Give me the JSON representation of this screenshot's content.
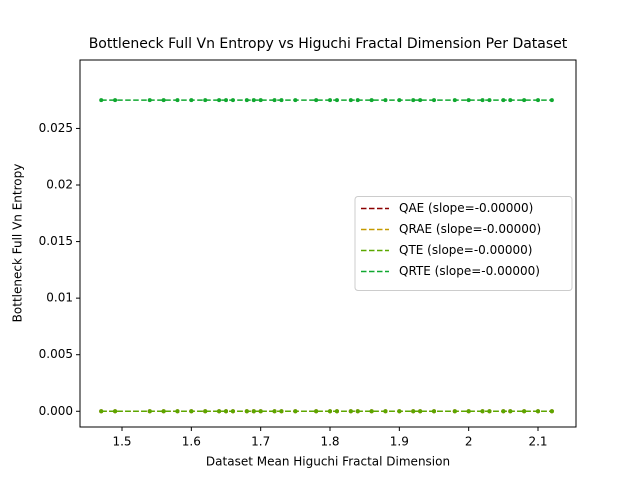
{
  "chart_data": {
    "type": "scatter",
    "title": "Bottleneck Full Vn Entropy vs Higuchi Fractal Dimension Per Dataset",
    "x_label": "Dataset Mean Higuchi Fractal Dimension",
    "y_label": "Bottleneck Full Vn Entropy",
    "x": [
      1.47,
      1.49,
      1.54,
      1.56,
      1.58,
      1.6,
      1.62,
      1.64,
      1.65,
      1.66,
      1.68,
      1.69,
      1.7,
      1.72,
      1.73,
      1.75,
      1.78,
      1.8,
      1.81,
      1.83,
      1.84,
      1.86,
      1.88,
      1.9,
      1.92,
      1.93,
      1.95,
      1.98,
      2.0,
      2.02,
      2.03,
      2.05,
      2.06,
      2.08,
      2.1,
      2.12
    ],
    "fit_x": [
      1.47,
      2.12
    ],
    "series": [
      {
        "name": "QAE (slope=-0.00000)",
        "color": "#8b0000",
        "fit_values": [
          0,
          0
        ],
        "values": [
          0,
          0,
          0,
          0,
          0,
          0,
          0,
          0,
          0,
          0,
          0,
          0,
          0,
          0,
          0,
          0,
          0,
          0,
          0,
          0,
          0,
          0,
          0,
          0,
          0,
          0,
          0,
          0,
          0,
          0,
          0,
          0,
          0,
          0,
          0,
          0
        ]
      },
      {
        "name": "QRAE (slope=-0.00000)",
        "color": "#c49a00",
        "fit_values": [
          0,
          0
        ],
        "values": [
          0,
          0,
          0,
          0,
          0,
          0,
          0,
          0,
          0,
          0,
          0,
          0,
          0,
          0,
          0,
          0,
          0,
          0,
          0,
          0,
          0,
          0,
          0,
          0,
          0,
          0,
          0,
          0,
          0,
          0,
          0,
          0,
          0,
          0,
          0,
          0
        ]
      },
      {
        "name": "QTE (slope=-0.00000)",
        "color": "#5aa800",
        "fit_values": [
          0,
          0
        ],
        "values": [
          0,
          0,
          0,
          0,
          0,
          0,
          0,
          0,
          0,
          0,
          0,
          0,
          0,
          0,
          0,
          0,
          0,
          0,
          0,
          0,
          0,
          0,
          0,
          0,
          0,
          0,
          0,
          0,
          0,
          0,
          0,
          0,
          0,
          0,
          0,
          0
        ]
      },
      {
        "name": "QRTE (slope=-0.00000)",
        "color": "#10a830",
        "fit_values": [
          0.0275,
          0.0275
        ],
        "values": [
          0.0275,
          0.0275,
          0.0275,
          0.0275,
          0.0275,
          0.0275,
          0.0275,
          0.0275,
          0.0275,
          0.0275,
          0.0275,
          0.0275,
          0.0275,
          0.0275,
          0.0275,
          0.0275,
          0.0275,
          0.0275,
          0.0275,
          0.0275,
          0.0275,
          0.0275,
          0.0275,
          0.0275,
          0.0275,
          0.0275,
          0.0275,
          0.0275,
          0.0275,
          0.0275,
          0.0275,
          0.0275,
          0.0275,
          0.0275,
          0.0275,
          0.0275
        ]
      }
    ],
    "xlim": [
      1.4394,
      2.1548
    ],
    "ylim": [
      -0.00139,
      0.03105
    ],
    "xticks": [
      1.5,
      1.6,
      1.7,
      1.8,
      1.9,
      2.0,
      2.1
    ],
    "yticks": [
      {
        "value": 0,
        "label": "0.000"
      },
      0.005,
      0.01,
      0.015,
      0.02,
      0.025
    ],
    "legend": "center right"
  }
}
